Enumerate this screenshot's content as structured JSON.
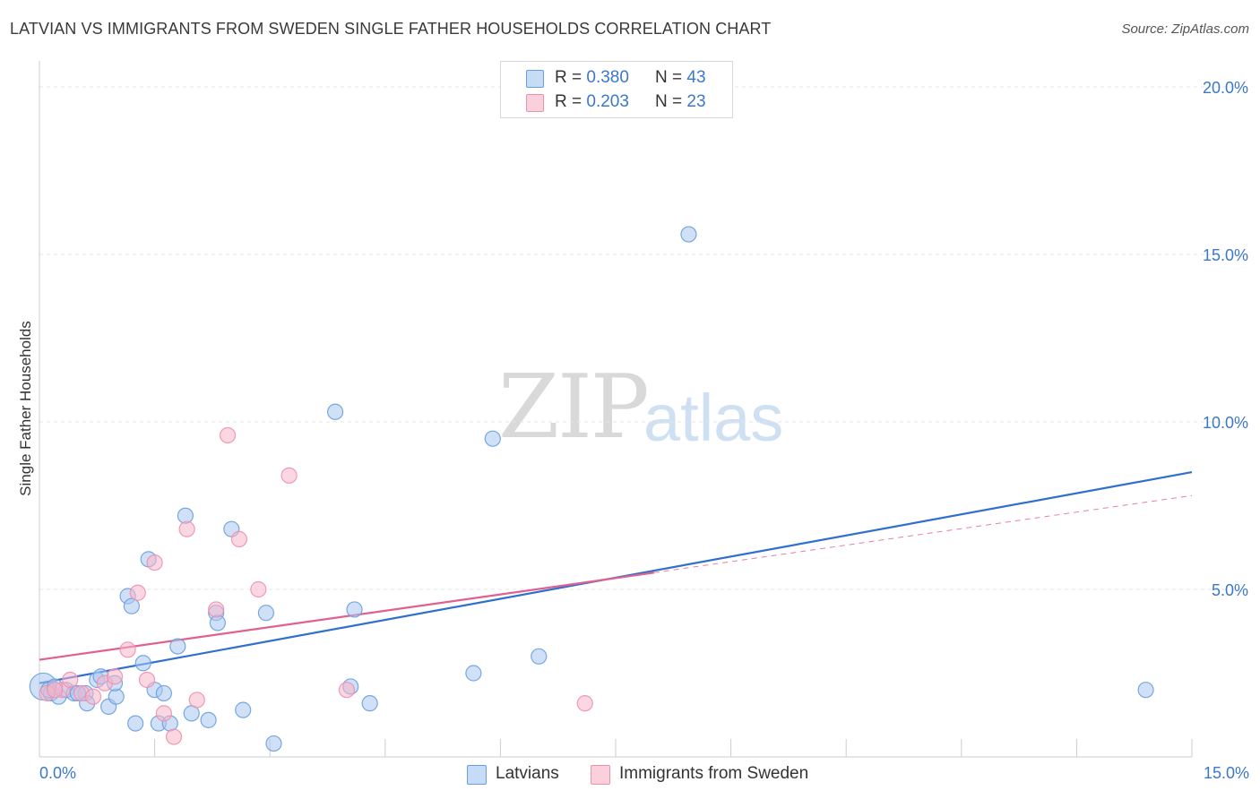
{
  "title": "LATVIAN VS IMMIGRANTS FROM SWEDEN SINGLE FATHER HOUSEHOLDS CORRELATION CHART",
  "source": "Source: ZipAtlas.com",
  "watermark": {
    "zip": "ZIP",
    "atlas": "atlas"
  },
  "legend_top": [
    {
      "r_label": "R = ",
      "r_value": "0.380",
      "n_label": "N = ",
      "n_value": "43",
      "color": "#a9c8f0"
    },
    {
      "r_label": "R = ",
      "r_value": "0.203",
      "n_label": "N = ",
      "n_value": "23",
      "color": "#f7b6ca"
    }
  ],
  "legend_bottom": [
    {
      "label": "Latvians",
      "color": "#a9c8f0"
    },
    {
      "label": "Immigrants from Sweden",
      "color": "#f7b6ca"
    }
  ],
  "chart_data": {
    "type": "scatter",
    "title": "LATVIAN VS IMMIGRANTS FROM SWEDEN SINGLE FATHER HOUSEHOLDS CORRELATION CHART",
    "xlabel": "",
    "ylabel": "Single Father Households",
    "xlim": [
      0,
      15
    ],
    "ylim": [
      0,
      20
    ],
    "x_tick_labels": [
      "0.0%",
      "15.0%"
    ],
    "y_ticks": [
      5,
      10,
      15,
      20
    ],
    "y_tick_labels": [
      "5.0%",
      "10.0%",
      "15.0%",
      "20.0%"
    ],
    "series": [
      {
        "name": "Latvians",
        "color": "#6a9ede",
        "fill": "#a9c8f0",
        "trend": {
          "x0": 0,
          "y0": 2.2,
          "x1": 15,
          "y1": 8.5,
          "color": "#2f6fd0"
        },
        "points": [
          {
            "x": 0.05,
            "y": 2.1,
            "big": true
          },
          {
            "x": 0.15,
            "y": 1.9
          },
          {
            "x": 0.25,
            "y": 1.8
          },
          {
            "x": 0.35,
            "y": 2.0
          },
          {
            "x": 0.45,
            "y": 1.9
          },
          {
            "x": 0.6,
            "y": 1.9
          },
          {
            "x": 0.62,
            "y": 1.6
          },
          {
            "x": 0.75,
            "y": 2.3
          },
          {
            "x": 0.8,
            "y": 2.4
          },
          {
            "x": 0.9,
            "y": 1.5
          },
          {
            "x": 1.0,
            "y": 1.8
          },
          {
            "x": 0.98,
            "y": 2.2
          },
          {
            "x": 1.15,
            "y": 4.8
          },
          {
            "x": 1.2,
            "y": 4.5
          },
          {
            "x": 1.25,
            "y": 1.0
          },
          {
            "x": 1.35,
            "y": 2.8
          },
          {
            "x": 1.42,
            "y": 5.9
          },
          {
            "x": 1.5,
            "y": 2.0
          },
          {
            "x": 1.55,
            "y": 1.0
          },
          {
            "x": 1.62,
            "y": 1.9
          },
          {
            "x": 1.7,
            "y": 1.0
          },
          {
            "x": 1.8,
            "y": 3.3
          },
          {
            "x": 1.9,
            "y": 7.2
          },
          {
            "x": 1.98,
            "y": 1.3
          },
          {
            "x": 2.2,
            "y": 1.1
          },
          {
            "x": 2.3,
            "y": 4.3
          },
          {
            "x": 2.32,
            "y": 4.0
          },
          {
            "x": 2.5,
            "y": 6.8
          },
          {
            "x": 2.65,
            "y": 1.4
          },
          {
            "x": 2.95,
            "y": 4.3
          },
          {
            "x": 3.05,
            "y": 0.4
          },
          {
            "x": 3.85,
            "y": 10.3
          },
          {
            "x": 4.05,
            "y": 2.1
          },
          {
            "x": 4.1,
            "y": 4.4
          },
          {
            "x": 4.3,
            "y": 1.6
          },
          {
            "x": 5.65,
            "y": 2.5
          },
          {
            "x": 5.9,
            "y": 9.5
          },
          {
            "x": 6.5,
            "y": 3.0
          },
          {
            "x": 8.45,
            "y": 15.6
          },
          {
            "x": 14.4,
            "y": 2.0
          },
          {
            "x": 0.12,
            "y": 2.0
          },
          {
            "x": 0.5,
            "y": 1.9
          },
          {
            "x": 0.2,
            "y": 2.1
          }
        ]
      },
      {
        "name": "Immigrants from Sweden",
        "color": "#ef8fae",
        "fill": "#f7b6ca",
        "trend": {
          "x0": 0,
          "y0": 2.9,
          "x1": 8.0,
          "y1": 5.5,
          "color": "#e0608f",
          "dash_to_x": 15,
          "dash_to_y": 7.8
        },
        "points": [
          {
            "x": 0.1,
            "y": 1.9
          },
          {
            "x": 0.3,
            "y": 2.0
          },
          {
            "x": 0.4,
            "y": 2.3
          },
          {
            "x": 0.55,
            "y": 1.9
          },
          {
            "x": 0.7,
            "y": 1.8
          },
          {
            "x": 0.85,
            "y": 2.2
          },
          {
            "x": 0.98,
            "y": 2.4
          },
          {
            "x": 1.15,
            "y": 3.2
          },
          {
            "x": 1.28,
            "y": 4.9
          },
          {
            "x": 1.4,
            "y": 2.3
          },
          {
            "x": 1.5,
            "y": 5.8
          },
          {
            "x": 1.62,
            "y": 1.3
          },
          {
            "x": 1.75,
            "y": 0.6
          },
          {
            "x": 1.92,
            "y": 6.8
          },
          {
            "x": 2.05,
            "y": 1.7
          },
          {
            "x": 2.3,
            "y": 4.4
          },
          {
            "x": 2.45,
            "y": 9.6
          },
          {
            "x": 2.6,
            "y": 6.5
          },
          {
            "x": 2.85,
            "y": 5.0
          },
          {
            "x": 3.25,
            "y": 8.4
          },
          {
            "x": 4.0,
            "y": 2.0
          },
          {
            "x": 7.1,
            "y": 1.6
          },
          {
            "x": 0.2,
            "y": 2.0
          }
        ]
      }
    ]
  }
}
